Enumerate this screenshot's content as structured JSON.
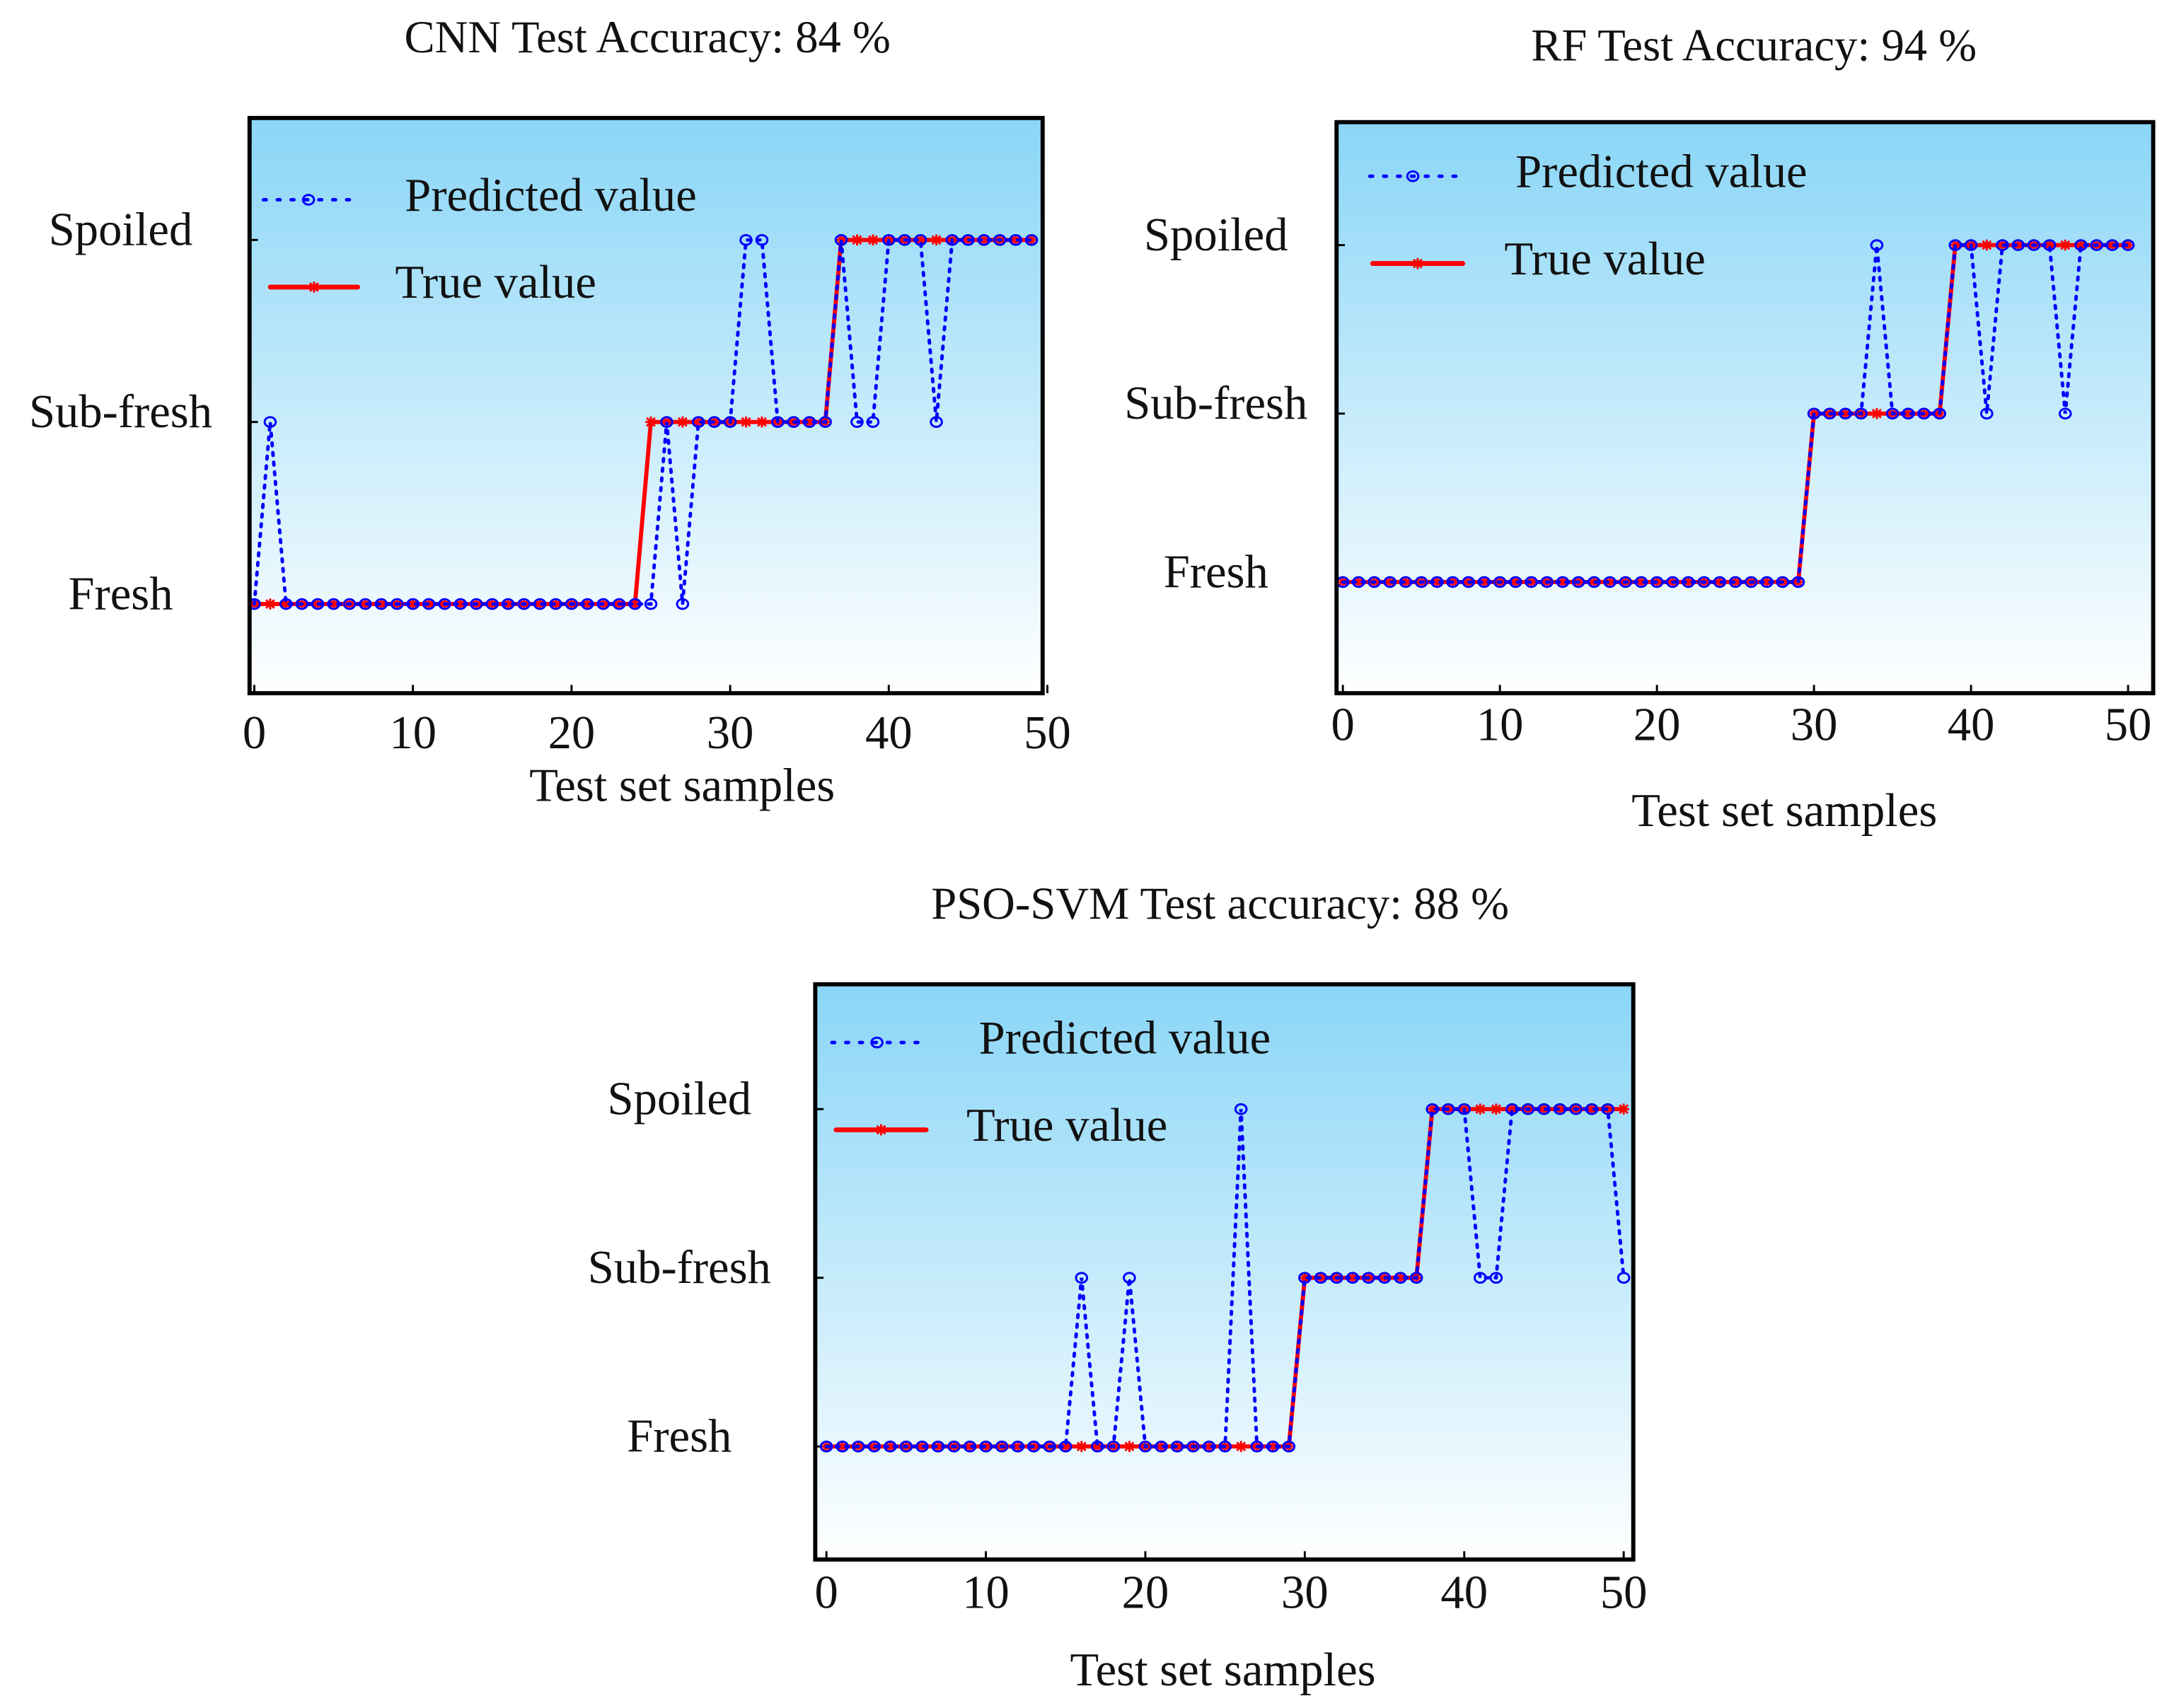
{
  "chart_data": [
    {
      "type": "line",
      "title": "CNN Test Accuracy: 84 %",
      "xlabel": "Test set samples",
      "legend": "upper left",
      "x": [
        0,
        1,
        2,
        3,
        4,
        5,
        6,
        7,
        8,
        9,
        10,
        11,
        12,
        13,
        14,
        15,
        16,
        17,
        18,
        19,
        20,
        21,
        22,
        23,
        24,
        25,
        26,
        27,
        28,
        29,
        30,
        31,
        32,
        33,
        34,
        35,
        36,
        37,
        38,
        39,
        40,
        41,
        42,
        43,
        44,
        45,
        46,
        47,
        48,
        49
      ],
      "series": [
        {
          "name": "Predicted value",
          "color": "#0000ff",
          "values": [
            1,
            2,
            1,
            1,
            1,
            1,
            1,
            1,
            1,
            1,
            1,
            1,
            1,
            1,
            1,
            1,
            1,
            1,
            1,
            1,
            1,
            1,
            1,
            1,
            1,
            1,
            2,
            1,
            2,
            2,
            2,
            3,
            3,
            2,
            2,
            2,
            2,
            3,
            2,
            2,
            3,
            3,
            3,
            2,
            3,
            3,
            3,
            3,
            3,
            3
          ]
        },
        {
          "name": "True value",
          "color": "#ff0000",
          "values": [
            1,
            1,
            1,
            1,
            1,
            1,
            1,
            1,
            1,
            1,
            1,
            1,
            1,
            1,
            1,
            1,
            1,
            1,
            1,
            1,
            1,
            1,
            1,
            1,
            1,
            2,
            2,
            2,
            2,
            2,
            2,
            2,
            2,
            2,
            2,
            2,
            2,
            3,
            3,
            3,
            3,
            3,
            3,
            3,
            3,
            3,
            3,
            3,
            3,
            3
          ]
        }
      ],
      "xlim": [
        -0.3,
        49.7
      ],
      "xticks": [
        0,
        10,
        20,
        30,
        40,
        50
      ],
      "ylim": [
        0.51,
        3.67
      ],
      "yticks": [
        {
          "value": 1,
          "label": "Fresh"
        },
        {
          "value": 2,
          "label": "Sub-fresh"
        },
        {
          "value": 3,
          "label": "Spoiled"
        }
      ]
    },
    {
      "type": "line",
      "title": "RF Test Accuracy: 94 %",
      "xlabel": "Test set samples",
      "legend": "upper left",
      "x": [
        0,
        1,
        2,
        3,
        4,
        5,
        6,
        7,
        8,
        9,
        10,
        11,
        12,
        13,
        14,
        15,
        16,
        17,
        18,
        19,
        20,
        21,
        22,
        23,
        24,
        25,
        26,
        27,
        28,
        29,
        30,
        31,
        32,
        33,
        34,
        35,
        36,
        37,
        38,
        39,
        40,
        41,
        42,
        43,
        44,
        45,
        46,
        47,
        48,
        49,
        50
      ],
      "series": [
        {
          "name": "Predicted value",
          "color": "#0000ff",
          "values": [
            1,
            1,
            1,
            1,
            1,
            1,
            1,
            1,
            1,
            1,
            1,
            1,
            1,
            1,
            1,
            1,
            1,
            1,
            1,
            1,
            1,
            1,
            1,
            1,
            1,
            1,
            1,
            1,
            1,
            1,
            2,
            2,
            2,
            2,
            3,
            2,
            2,
            2,
            2,
            3,
            3,
            2,
            3,
            3,
            3,
            3,
            2,
            3,
            3,
            3,
            3
          ]
        },
        {
          "name": "True value",
          "color": "#ff0000",
          "values": [
            1,
            1,
            1,
            1,
            1,
            1,
            1,
            1,
            1,
            1,
            1,
            1,
            1,
            1,
            1,
            1,
            1,
            1,
            1,
            1,
            1,
            1,
            1,
            1,
            1,
            1,
            1,
            1,
            1,
            1,
            2,
            2,
            2,
            2,
            2,
            2,
            2,
            2,
            2,
            3,
            3,
            3,
            3,
            3,
            3,
            3,
            3,
            3,
            3,
            3,
            3
          ]
        }
      ],
      "xlim": [
        -0.4,
        51.6
      ],
      "xticks": [
        0,
        10,
        20,
        30,
        40,
        50
      ],
      "ylim": [
        0.34,
        3.73
      ],
      "yticks": [
        {
          "value": 1,
          "label": "Fresh"
        },
        {
          "value": 2,
          "label": "Sub-fresh"
        },
        {
          "value": 3,
          "label": "Spoiled"
        }
      ]
    },
    {
      "type": "line",
      "title": "PSO-SVM Test accuracy: 88 %",
      "xlabel": "Test set samples",
      "legend": "upper left",
      "x": [
        0,
        1,
        2,
        3,
        4,
        5,
        6,
        7,
        8,
        9,
        10,
        11,
        12,
        13,
        14,
        15,
        16,
        17,
        18,
        19,
        20,
        21,
        22,
        23,
        24,
        25,
        26,
        27,
        28,
        29,
        30,
        31,
        32,
        33,
        34,
        35,
        36,
        37,
        38,
        39,
        40,
        41,
        42,
        43,
        44,
        45,
        46,
        47,
        48,
        49,
        50
      ],
      "series": [
        {
          "name": "Predicted value",
          "color": "#0000ff",
          "values": [
            1,
            1,
            1,
            1,
            1,
            1,
            1,
            1,
            1,
            1,
            1,
            1,
            1,
            1,
            1,
            1,
            2,
            1,
            1,
            2,
            1,
            1,
            1,
            1,
            1,
            1,
            3,
            1,
            1,
            1,
            2,
            2,
            2,
            2,
            2,
            2,
            2,
            2,
            3,
            3,
            3,
            2,
            2,
            3,
            3,
            3,
            3,
            3,
            3,
            3,
            2
          ]
        },
        {
          "name": "True value",
          "color": "#ff0000",
          "values": [
            1,
            1,
            1,
            1,
            1,
            1,
            1,
            1,
            1,
            1,
            1,
            1,
            1,
            1,
            1,
            1,
            1,
            1,
            1,
            1,
            1,
            1,
            1,
            1,
            1,
            1,
            1,
            1,
            1,
            1,
            2,
            2,
            2,
            2,
            2,
            2,
            2,
            2,
            3,
            3,
            3,
            3,
            3,
            3,
            3,
            3,
            3,
            3,
            3,
            3,
            3
          ]
        }
      ],
      "xlim": [
        -0.7,
        50.6
      ],
      "xticks": [
        0,
        10,
        20,
        30,
        40,
        50
      ],
      "ylim": [
        0.33,
        3.74
      ],
      "yticks": [
        {
          "value": 1,
          "label": "Fresh"
        },
        {
          "value": 2,
          "label": "Sub-fresh"
        },
        {
          "value": 3,
          "label": "Spoiled"
        }
      ]
    }
  ]
}
